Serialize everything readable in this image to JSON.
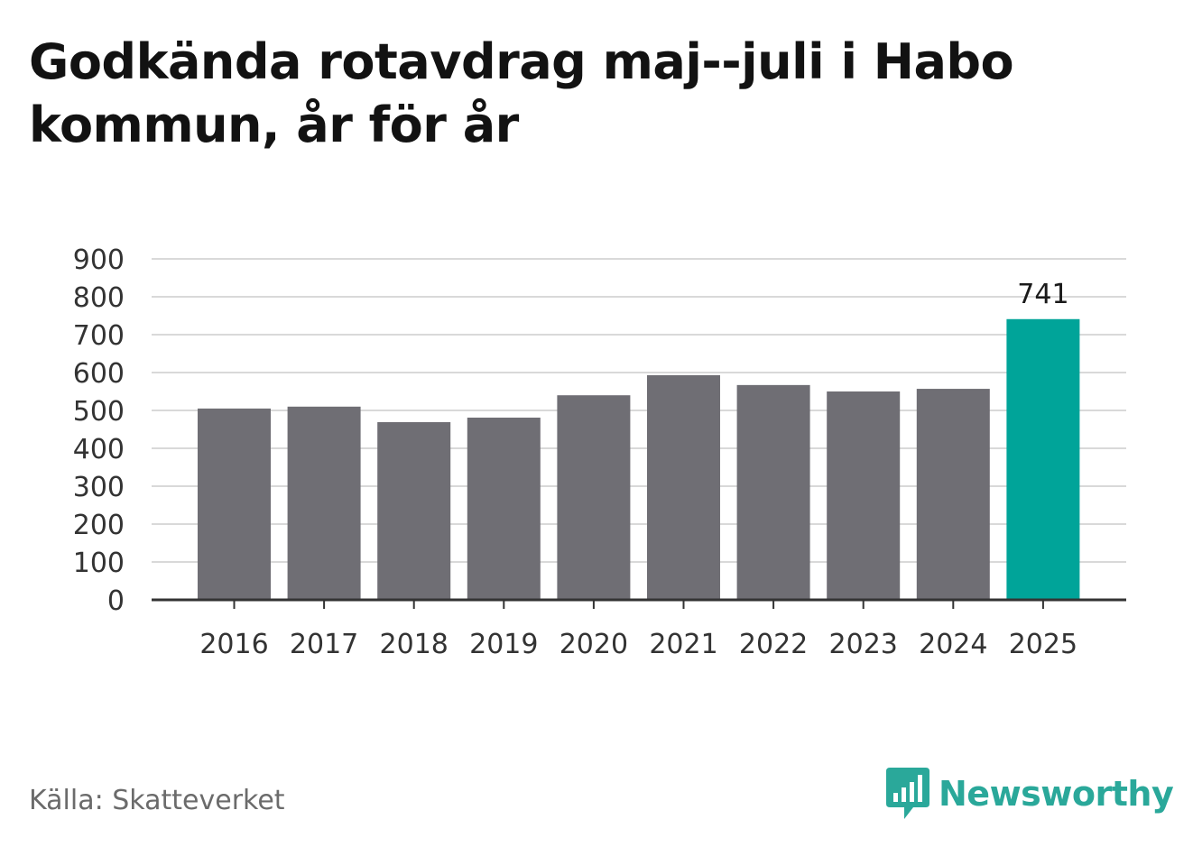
{
  "title": "Godkända rotavdrag maj--juli i Habo kommun, år för år",
  "source": "Källa: Skatteverket",
  "brand": {
    "name": "Newsworthy",
    "icon": "newsworthy-logo-icon"
  },
  "colors": {
    "bar_default": "#6f6e74",
    "bar_highlight": "#00a499",
    "grid": "#d9d9d9",
    "axis": "#333333",
    "text": "#333333",
    "brand": "#2aa89a"
  },
  "chart_data": {
    "type": "bar",
    "categories": [
      "2016",
      "2017",
      "2018",
      "2019",
      "2020",
      "2021",
      "2022",
      "2023",
      "2024",
      "2025"
    ],
    "values": [
      505,
      510,
      469,
      481,
      540,
      593,
      567,
      550,
      557,
      741
    ],
    "highlight_index": 9,
    "data_labels": [
      {
        "index": 9,
        "text": "741"
      }
    ],
    "ylim": [
      0,
      900
    ],
    "yticks": [
      0,
      100,
      200,
      300,
      400,
      500,
      600,
      700,
      800,
      900
    ],
    "xlabel": "",
    "ylabel": "",
    "grid": true,
    "legend": "none"
  }
}
